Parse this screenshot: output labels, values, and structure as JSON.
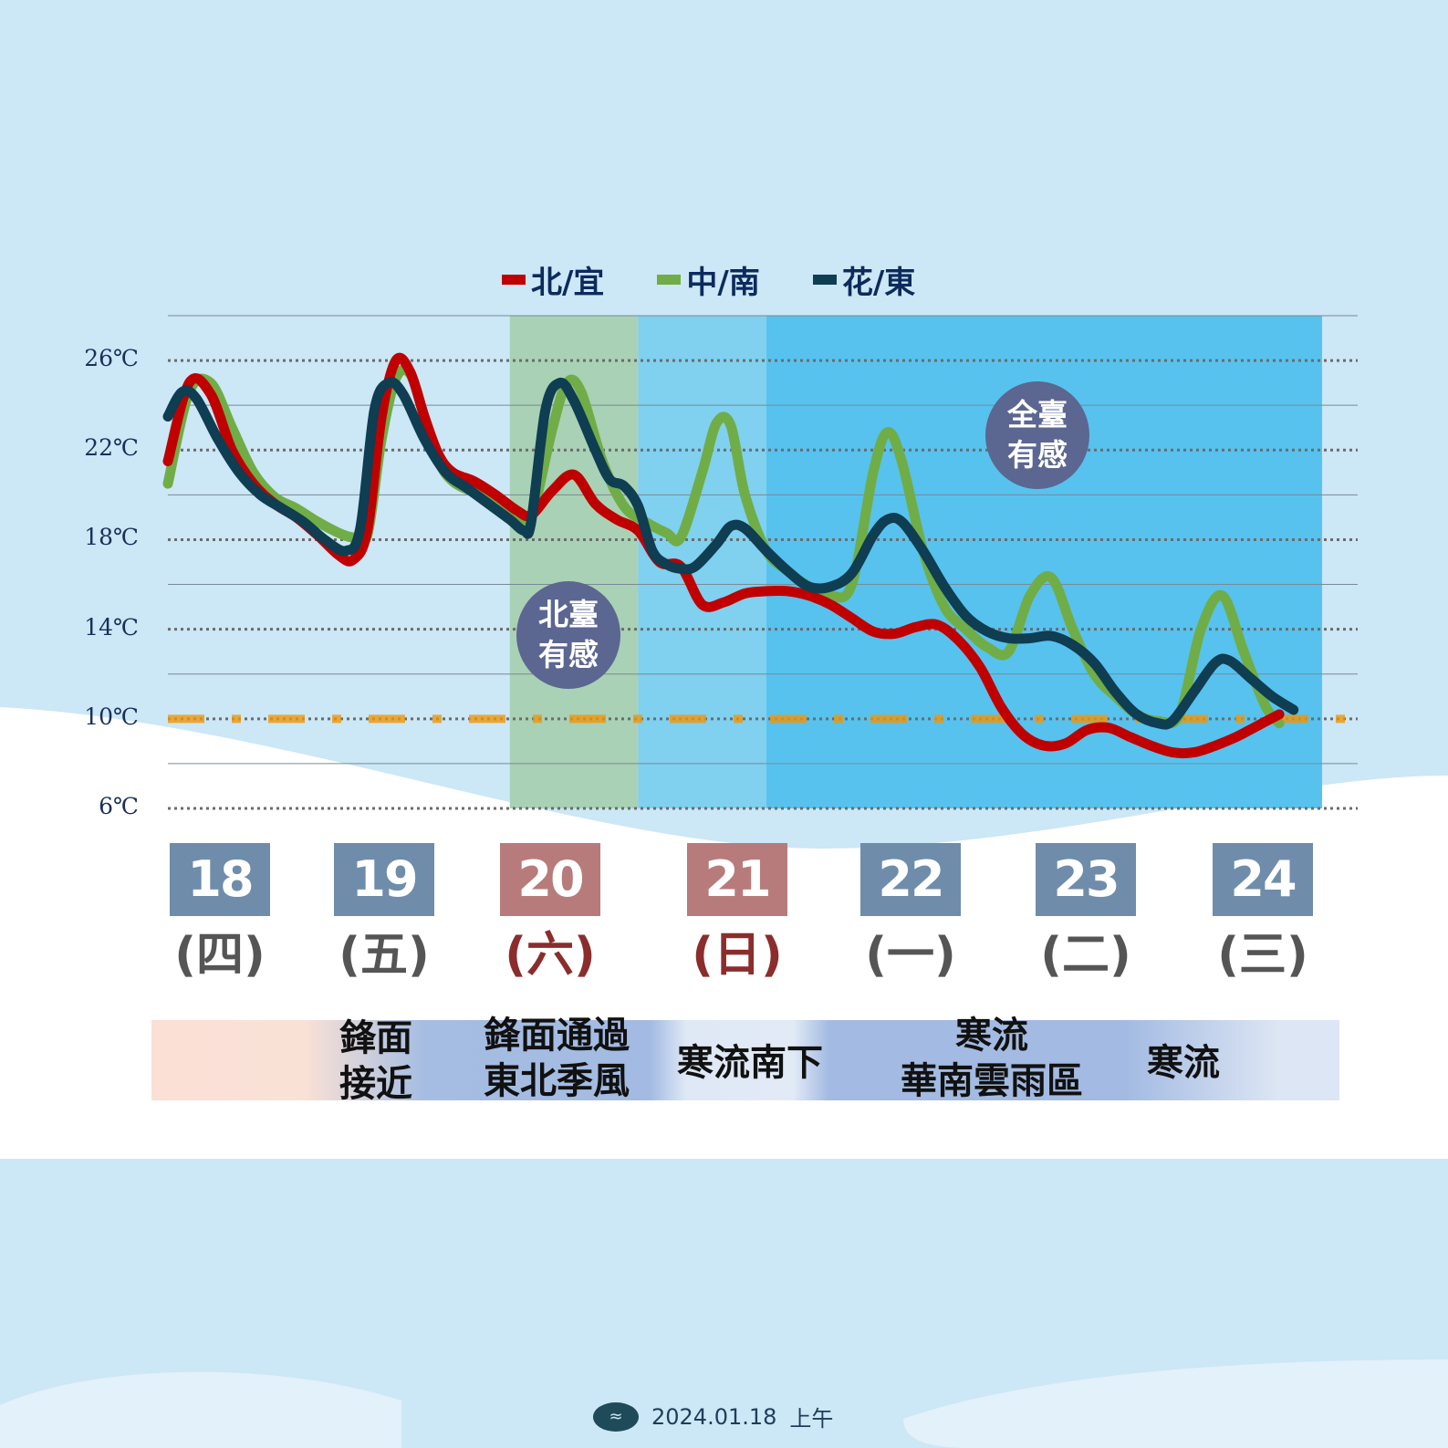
{
  "legend": [
    {
      "label": "北/宜",
      "color": "#c00000"
    },
    {
      "label": "中/南",
      "color": "#70ad47"
    },
    {
      "label": "花/東",
      "color": "#0f3d52"
    }
  ],
  "periods": [
    {
      "range": [
        "2024-01-20T00",
        "2024-01-20T18"
      ],
      "color": "#a9d1b5"
    },
    {
      "range": [
        "2024-01-20T18",
        "2024-01-21T12"
      ],
      "color": "#80d0ef"
    },
    {
      "range": [
        "2024-01-21T12",
        "2024-01-24T18"
      ],
      "color": "#57c2ee"
    }
  ],
  "badges": [
    {
      "line1": "北臺",
      "line2": "有感"
    },
    {
      "line1": "全臺",
      "line2": "有感"
    }
  ],
  "days": [
    {
      "date": "18",
      "weekday": "(四)",
      "color": "#6f8cab",
      "text_color": "#555555"
    },
    {
      "date": "19",
      "weekday": "(五)",
      "color": "#6f8cab",
      "text_color": "#555555"
    },
    {
      "date": "20",
      "weekday": "(六)",
      "color": "#b87b7b",
      "text_color": "#8b2d2d"
    },
    {
      "date": "21",
      "weekday": "(日)",
      "color": "#b87b7b",
      "text_color": "#8b2d2d"
    },
    {
      "date": "22",
      "weekday": "(一)",
      "color": "#6f8cab",
      "text_color": "#555555"
    },
    {
      "date": "23",
      "weekday": "(二)",
      "color": "#6f8cab",
      "text_color": "#555555"
    },
    {
      "date": "24",
      "weekday": "(三)",
      "color": "#6f8cab",
      "text_color": "#555555"
    }
  ],
  "events": [
    {
      "line1": "鋒面",
      "line2": "接近"
    },
    {
      "line1": "鋒面通過",
      "line2": "東北季風"
    },
    {
      "line1": "寒流南下",
      "line2": ""
    },
    {
      "line1": "寒流",
      "line2": "華南雲雨區"
    },
    {
      "line1": "寒流",
      "line2": ""
    }
  ],
  "footer": {
    "date": "2024.01.18",
    "time": "上午"
  },
  "chart_data": {
    "type": "line",
    "x_unit": "datetime (hourly)",
    "x_range": [
      "2024-01-18T00",
      "2024-01-24T23"
    ],
    "ylim": [
      6,
      28
    ],
    "yticks": [
      6,
      10,
      14,
      18,
      22,
      26
    ],
    "ytick_labels": [
      "6℃",
      "10℃",
      "14℃",
      "18℃",
      "22℃",
      "26℃"
    ],
    "grid": true,
    "cold_threshold": 10,
    "series": [
      {
        "name": "北/宜",
        "color": "#c00000",
        "points": [
          [
            "2024-01-18T00",
            21.5
          ],
          [
            "2024-01-18T03",
            25.0
          ],
          [
            "2024-01-18T06",
            24.5
          ],
          [
            "2024-01-18T09",
            22.0
          ],
          [
            "2024-01-18T12",
            20.5
          ],
          [
            "2024-01-18T15",
            19.6
          ],
          [
            "2024-01-18T18",
            19.0
          ],
          [
            "2024-01-18T21",
            18.2
          ],
          [
            "2024-01-19T00",
            17.3
          ],
          [
            "2024-01-19T02",
            17.1
          ],
          [
            "2024-01-19T04",
            18.4
          ],
          [
            "2024-01-19T06",
            23.5
          ],
          [
            "2024-01-19T08",
            26.0
          ],
          [
            "2024-01-19T10",
            25.5
          ],
          [
            "2024-01-19T12",
            23.5
          ],
          [
            "2024-01-19T14",
            21.8
          ],
          [
            "2024-01-19T16",
            21.0
          ],
          [
            "2024-01-19T19",
            20.6
          ],
          [
            "2024-01-19T22",
            20.0
          ],
          [
            "2024-01-20T01",
            19.3
          ],
          [
            "2024-01-20T03",
            19.1
          ],
          [
            "2024-01-20T06",
            20.2
          ],
          [
            "2024-01-20T09",
            20.9
          ],
          [
            "2024-01-20T12",
            19.6
          ],
          [
            "2024-01-20T15",
            18.9
          ],
          [
            "2024-01-20T18",
            18.4
          ],
          [
            "2024-01-20T21",
            17.0
          ],
          [
            "2024-01-21T00",
            16.8
          ],
          [
            "2024-01-21T03",
            15.1
          ],
          [
            "2024-01-21T06",
            15.2
          ],
          [
            "2024-01-21T09",
            15.6
          ],
          [
            "2024-01-21T12",
            15.7
          ],
          [
            "2024-01-21T15",
            15.7
          ],
          [
            "2024-01-21T18",
            15.5
          ],
          [
            "2024-01-21T21",
            15.1
          ],
          [
            "2024-01-22T00",
            14.5
          ],
          [
            "2024-01-22T03",
            13.9
          ],
          [
            "2024-01-22T06",
            13.8
          ],
          [
            "2024-01-22T09",
            14.1
          ],
          [
            "2024-01-22T12",
            14.2
          ],
          [
            "2024-01-22T15",
            13.5
          ],
          [
            "2024-01-22T18",
            12.3
          ],
          [
            "2024-01-22T21",
            10.5
          ],
          [
            "2024-01-23T00",
            9.3
          ],
          [
            "2024-01-23T03",
            8.8
          ],
          [
            "2024-01-23T06",
            8.9
          ],
          [
            "2024-01-23T09",
            9.5
          ],
          [
            "2024-01-23T12",
            9.6
          ],
          [
            "2024-01-23T15",
            9.2
          ],
          [
            "2024-01-23T18",
            8.8
          ],
          [
            "2024-01-23T21",
            8.5
          ],
          [
            "2024-01-24T00",
            8.5
          ],
          [
            "2024-01-24T03",
            8.8
          ],
          [
            "2024-01-24T06",
            9.2
          ],
          [
            "2024-01-24T09",
            9.7
          ],
          [
            "2024-01-24T12",
            10.2
          ]
        ]
      },
      {
        "name": "中/南",
        "color": "#70ad47",
        "points": [
          [
            "2024-01-18T00",
            20.5
          ],
          [
            "2024-01-18T03",
            24.6
          ],
          [
            "2024-01-18T06",
            25.0
          ],
          [
            "2024-01-18T09",
            23.0
          ],
          [
            "2024-01-18T12",
            21.0
          ],
          [
            "2024-01-18T15",
            19.9
          ],
          [
            "2024-01-18T18",
            19.4
          ],
          [
            "2024-01-18T21",
            18.8
          ],
          [
            "2024-01-19T00",
            18.3
          ],
          [
            "2024-01-19T02",
            18.1
          ],
          [
            "2024-01-19T04",
            18.2
          ],
          [
            "2024-01-19T06",
            22.5
          ],
          [
            "2024-01-19T08",
            25.2
          ],
          [
            "2024-01-19T10",
            25.4
          ],
          [
            "2024-01-19T12",
            23.5
          ],
          [
            "2024-01-19T14",
            21.5
          ],
          [
            "2024-01-19T16",
            20.6
          ],
          [
            "2024-01-19T19",
            20.1
          ],
          [
            "2024-01-19T22",
            19.6
          ],
          [
            "2024-01-20T01",
            19.1
          ],
          [
            "2024-01-20T03",
            19.0
          ],
          [
            "2024-01-20T06",
            23.0
          ],
          [
            "2024-01-20T08",
            25.0
          ],
          [
            "2024-01-20T10",
            24.6
          ],
          [
            "2024-01-20T13",
            21.5
          ],
          [
            "2024-01-20T16",
            19.5
          ],
          [
            "2024-01-20T19",
            18.8
          ],
          [
            "2024-01-20T22",
            18.3
          ],
          [
            "2024-01-21T00",
            18.1
          ],
          [
            "2024-01-21T03",
            21.0
          ],
          [
            "2024-01-21T05",
            23.2
          ],
          [
            "2024-01-21T07",
            23.1
          ],
          [
            "2024-01-21T09",
            20.0
          ],
          [
            "2024-01-21T12",
            17.5
          ],
          [
            "2024-01-21T15",
            16.6
          ],
          [
            "2024-01-21T18",
            15.9
          ],
          [
            "2024-01-21T21",
            15.5
          ],
          [
            "2024-01-22T00",
            16.0
          ],
          [
            "2024-01-22T03",
            21.0
          ],
          [
            "2024-01-22T05",
            22.8
          ],
          [
            "2024-01-22T07",
            21.5
          ],
          [
            "2024-01-22T10",
            17.5
          ],
          [
            "2024-01-22T13",
            15.0
          ],
          [
            "2024-01-22T16",
            14.0
          ],
          [
            "2024-01-22T19",
            13.2
          ],
          [
            "2024-01-22T22",
            13.0
          ],
          [
            "2024-01-23T01",
            15.5
          ],
          [
            "2024-01-23T04",
            16.3
          ],
          [
            "2024-01-23T07",
            14.0
          ],
          [
            "2024-01-23T10",
            12.0
          ],
          [
            "2024-01-23T13",
            11.0
          ],
          [
            "2024-01-23T16",
            10.2
          ],
          [
            "2024-01-23T19",
            9.9
          ],
          [
            "2024-01-23T22",
            10.2
          ],
          [
            "2024-01-24T01",
            14.0
          ],
          [
            "2024-01-24T04",
            15.5
          ],
          [
            "2024-01-24T07",
            13.0
          ],
          [
            "2024-01-24T10",
            10.6
          ],
          [
            "2024-01-24T12",
            9.8
          ]
        ]
      },
      {
        "name": "花/東",
        "color": "#0f3d52",
        "points": [
          [
            "2024-01-18T00",
            23.5
          ],
          [
            "2024-01-18T02",
            24.6
          ],
          [
            "2024-01-18T04",
            24.3
          ],
          [
            "2024-01-18T07",
            22.5
          ],
          [
            "2024-01-18T10",
            21.0
          ],
          [
            "2024-01-18T13",
            20.0
          ],
          [
            "2024-01-18T16",
            19.4
          ],
          [
            "2024-01-18T19",
            18.8
          ],
          [
            "2024-01-18T22",
            18.0
          ],
          [
            "2024-01-19T01",
            17.5
          ],
          [
            "2024-01-19T03",
            18.5
          ],
          [
            "2024-01-19T05",
            23.8
          ],
          [
            "2024-01-19T07",
            25.0
          ],
          [
            "2024-01-19T09",
            24.5
          ],
          [
            "2024-01-19T12",
            22.5
          ],
          [
            "2024-01-19T15",
            21.0
          ],
          [
            "2024-01-19T18",
            20.3
          ],
          [
            "2024-01-19T21",
            19.6
          ],
          [
            "2024-01-20T00",
            18.9
          ],
          [
            "2024-01-20T02",
            18.4
          ],
          [
            "2024-01-20T03",
            18.8
          ],
          [
            "2024-01-20T05",
            23.8
          ],
          [
            "2024-01-20T07",
            25.0
          ],
          [
            "2024-01-20T09",
            24.2
          ],
          [
            "2024-01-20T12",
            22.0
          ],
          [
            "2024-01-20T14",
            20.7
          ],
          [
            "2024-01-20T16",
            20.4
          ],
          [
            "2024-01-20T18",
            19.5
          ],
          [
            "2024-01-20T20",
            17.5
          ],
          [
            "2024-01-20T22",
            16.9
          ],
          [
            "2024-01-21T00",
            16.7
          ],
          [
            "2024-01-21T02",
            16.8
          ],
          [
            "2024-01-21T05",
            17.8
          ],
          [
            "2024-01-21T07",
            18.6
          ],
          [
            "2024-01-21T09",
            18.5
          ],
          [
            "2024-01-21T12",
            17.5
          ],
          [
            "2024-01-21T15",
            16.6
          ],
          [
            "2024-01-21T18",
            15.9
          ],
          [
            "2024-01-21T21",
            15.9
          ],
          [
            "2024-01-22T00",
            16.5
          ],
          [
            "2024-01-22T03",
            18.2
          ],
          [
            "2024-01-22T05",
            18.9
          ],
          [
            "2024-01-22T07",
            18.8
          ],
          [
            "2024-01-22T10",
            17.5
          ],
          [
            "2024-01-22T13",
            15.9
          ],
          [
            "2024-01-22T16",
            14.6
          ],
          [
            "2024-01-22T19",
            13.9
          ],
          [
            "2024-01-22T22",
            13.6
          ],
          [
            "2024-01-23T01",
            13.6
          ],
          [
            "2024-01-23T04",
            13.7
          ],
          [
            "2024-01-23T07",
            13.3
          ],
          [
            "2024-01-23T10",
            12.5
          ],
          [
            "2024-01-23T13",
            11.2
          ],
          [
            "2024-01-23T16",
            10.2
          ],
          [
            "2024-01-23T19",
            9.8
          ],
          [
            "2024-01-23T21",
            9.9
          ],
          [
            "2024-01-24T00",
            11.2
          ],
          [
            "2024-01-24T03",
            12.5
          ],
          [
            "2024-01-24T05",
            12.6
          ],
          [
            "2024-01-24T08",
            11.8
          ],
          [
            "2024-01-24T11",
            11.0
          ],
          [
            "2024-01-24T14",
            10.4
          ]
        ]
      }
    ]
  }
}
